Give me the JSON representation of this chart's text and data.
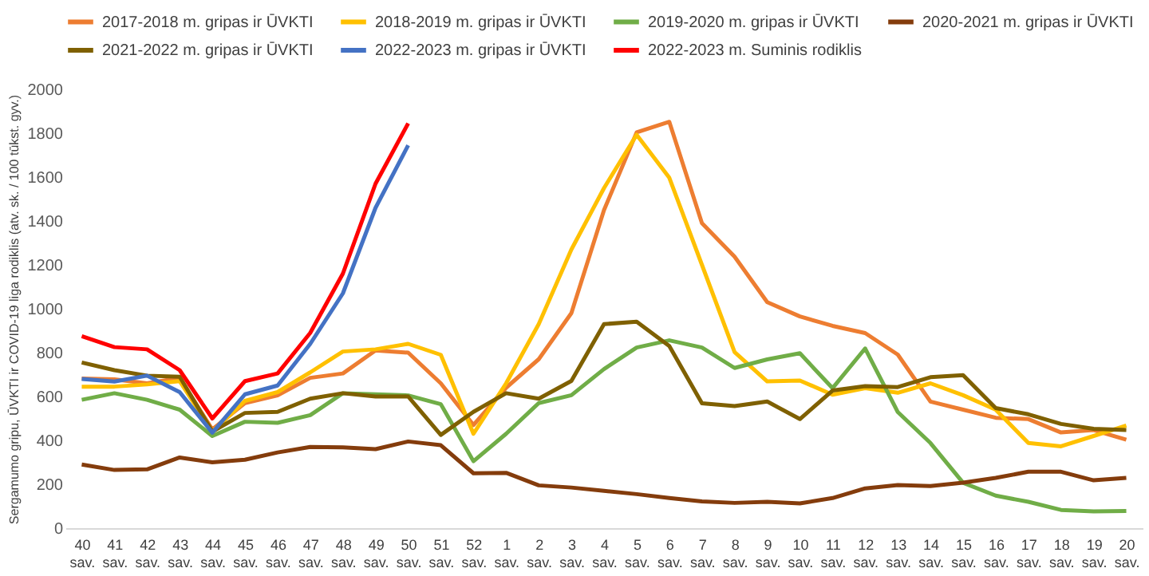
{
  "chart_data": {
    "type": "line",
    "ylabel": "Sergamumo gripu, ŪVKTI ir COVID-19 liga rodiklis (atv. sk. / 100 tūkst. gyv.)",
    "categories": [
      "40 sav.",
      "41 sav.",
      "42 sav.",
      "43 sav.",
      "44 sav.",
      "45 sav.",
      "46 sav.",
      "47 sav.",
      "48 sav.",
      "49 sav.",
      "50 sav.",
      "51 sav.",
      "52 sav.",
      "1 sav.",
      "2 sav.",
      "3 sav.",
      "4 sav.",
      "5 sav.",
      "6 sav.",
      "7 sav.",
      "8 sav.",
      "9 sav.",
      "10 sav.",
      "11 sav.",
      "12 sav.",
      "13 sav.",
      "14 sav.",
      "15 sav.",
      "16 sav.",
      "17 sav.",
      "18 sav.",
      "19 sav.",
      "20 sav."
    ],
    "ylim": [
      0,
      2000
    ],
    "yticks": [
      0,
      200,
      400,
      600,
      800,
      1000,
      1200,
      1400,
      1600,
      1800,
      2000
    ],
    "grid": false,
    "legend": "top",
    "marker": "none",
    "line_style": "solid",
    "series": [
      {
        "name": "2017-2018 m. gripas ir ŪVKTI",
        "color": "#ed7d31",
        "values": [
          682,
          678,
          660,
          685,
          450,
          570,
          605,
          685,
          705,
          810,
          800,
          660,
          470,
          640,
          770,
          980,
          1450,
          1804,
          1852,
          1390,
          1237,
          1030,
          965,
          922,
          889,
          791,
          577,
          540,
          503,
          497,
          436,
          447,
          403
        ]
      },
      {
        "name": "2018-2019 m. gripas ir ŪVKTI",
        "color": "#ffc000",
        "values": [
          645,
          645,
          655,
          670,
          440,
          580,
          620,
          710,
          805,
          815,
          840,
          790,
          430,
          660,
          930,
          1270,
          1550,
          1793,
          1597,
          1200,
          802,
          669,
          673,
          608,
          638,
          617,
          660,
          606,
          540,
          388,
          373,
          420,
          468
        ]
      },
      {
        "name": "2019-2020 m. gripas ir ŪVKTI",
        "color": "#70ad47",
        "values": [
          585,
          615,
          585,
          540,
          420,
          485,
          480,
          515,
          615,
          610,
          605,
          565,
          305,
          430,
          570,
          606,
          725,
          823,
          856,
          823,
          730,
          769,
          797,
          638,
          819,
          529,
          388,
          207,
          148,
          120,
          83,
          76,
          78
        ]
      },
      {
        "name": "2020-2021 m. gripas ir ŪVKTI",
        "color": "#843c0c",
        "values": [
          290,
          265,
          268,
          322,
          300,
          312,
          345,
          370,
          368,
          360,
          395,
          378,
          250,
          252,
          195,
          185,
          170,
          155,
          137,
          122,
          115,
          120,
          113,
          137,
          181,
          196,
          192,
          207,
          229,
          257,
          257,
          218,
          229
        ]
      },
      {
        "name": "2021-2022 m. gripas ir ŪVKTI",
        "color": "#7f6000",
        "values": [
          755,
          720,
          695,
          690,
          440,
          525,
          530,
          590,
          615,
          600,
          600,
          425,
          530,
          615,
          590,
          671,
          930,
          941,
          830,
          569,
          556,
          577,
          497,
          627,
          647,
          643,
          688,
          697,
          547,
          519,
          475,
          453,
          447
        ]
      },
      {
        "name": "2022-2023 m. gripas ir ŪVKTI",
        "color": "#4472c4",
        "values": [
          680,
          668,
          695,
          620,
          435,
          610,
          650,
          840,
          1070,
          1460,
          1745,
          null,
          null,
          null,
          null,
          null,
          null,
          null,
          null,
          null,
          null,
          null,
          null,
          null,
          null,
          null,
          null,
          null,
          null,
          null,
          null,
          null,
          null
        ]
      },
      {
        "name": "2022-2023 m. Suminis rodiklis",
        "color": "#ff0000",
        "values": [
          875,
          825,
          815,
          720,
          500,
          670,
          705,
          890,
          1160,
          1570,
          1845,
          null,
          null,
          null,
          null,
          null,
          null,
          null,
          null,
          null,
          null,
          null,
          null,
          null,
          null,
          null,
          null,
          null,
          null,
          null,
          null,
          null,
          null
        ]
      }
    ]
  }
}
